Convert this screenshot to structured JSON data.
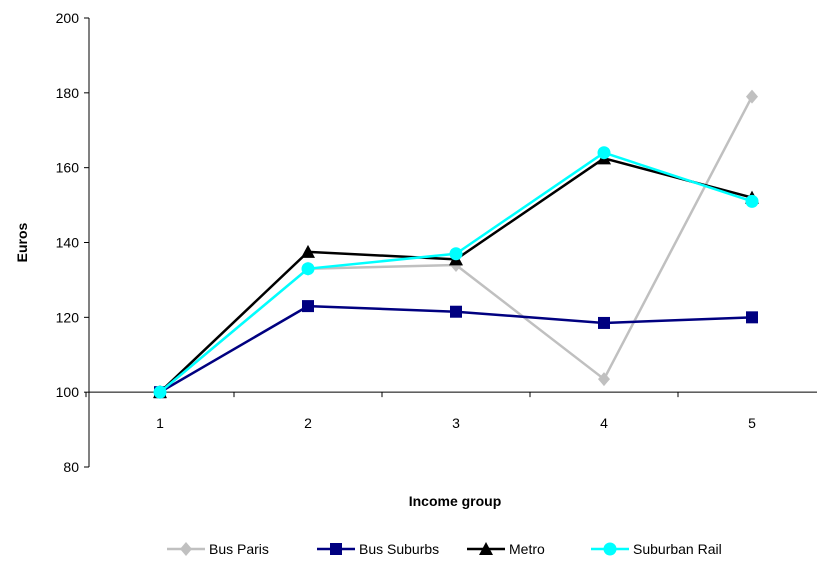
{
  "chart_data": {
    "type": "line",
    "title": "",
    "xlabel": "Income group",
    "ylabel": "Euros",
    "x": [
      1,
      2,
      3,
      4,
      5
    ],
    "x_tick_labels": [
      "1",
      "2",
      "3",
      "4",
      "5"
    ],
    "ylim": [
      80,
      200
    ],
    "y_ticks": [
      80,
      100,
      120,
      140,
      160,
      180,
      200
    ],
    "y_tick_labels": [
      "80",
      "100",
      "120",
      "140",
      "160",
      "180",
      "200"
    ],
    "x_axis_crosses_at": 100,
    "grid": false,
    "legend_position": "bottom",
    "series": [
      {
        "name": "Bus Paris",
        "color": "#c0c0c0",
        "marker": "diamond",
        "values": [
          100,
          133,
          134,
          103.5,
          179
        ]
      },
      {
        "name": "Bus Suburbs",
        "color": "#000080",
        "marker": "square",
        "values": [
          100,
          123,
          121.5,
          118.5,
          120
        ]
      },
      {
        "name": "Metro",
        "color": "#000000",
        "marker": "triangle",
        "values": [
          100,
          137.5,
          135.5,
          162.5,
          152
        ]
      },
      {
        "name": "Suburban Rail",
        "color": "#00ffff",
        "marker": "circle",
        "values": [
          100,
          133,
          137,
          164,
          151
        ]
      }
    ]
  }
}
